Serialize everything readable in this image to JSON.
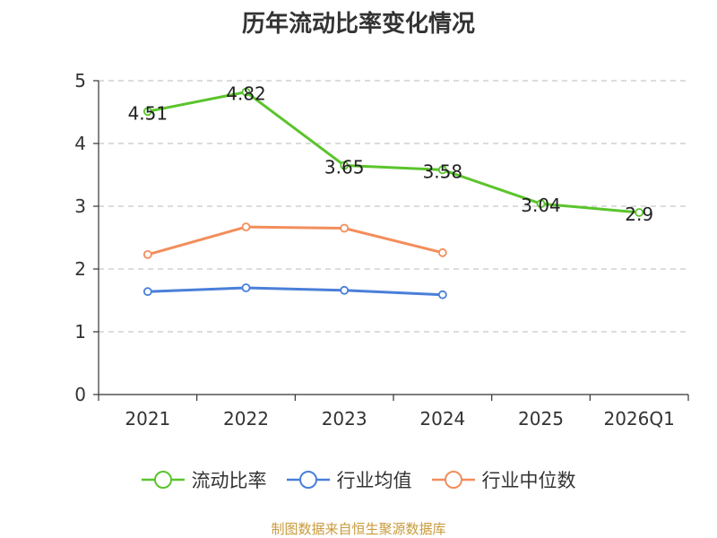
{
  "chart_data": {
    "type": "line",
    "title": "历年流动比率变化情况",
    "categories": [
      "2021",
      "2022",
      "2023",
      "2024",
      "2025",
      "2026Q1"
    ],
    "ylim": [
      0,
      5
    ],
    "yticks": [
      "0",
      "1",
      "2",
      "3",
      "4",
      "5"
    ],
    "grid": true,
    "legend_position": "bottom",
    "series": [
      {
        "name": "流动比率",
        "color": "#5BC42C",
        "values": [
          4.51,
          4.82,
          3.65,
          3.58,
          3.04,
          2.9
        ],
        "labels": [
          "4.51",
          "4.82",
          "3.65",
          "3.58",
          "3.04",
          "2.9"
        ]
      },
      {
        "name": "行业均值",
        "color": "#4A7FD9",
        "values": [
          1.64,
          1.7,
          1.66,
          1.59,
          null,
          null
        ]
      },
      {
        "name": "行业中位数",
        "color": "#F28E5C",
        "values": [
          2.23,
          2.67,
          2.65,
          2.26,
          null,
          null
        ]
      }
    ]
  },
  "source": {
    "text": "制图数据来自恒生聚源数据库",
    "color": "#C89A3C"
  }
}
